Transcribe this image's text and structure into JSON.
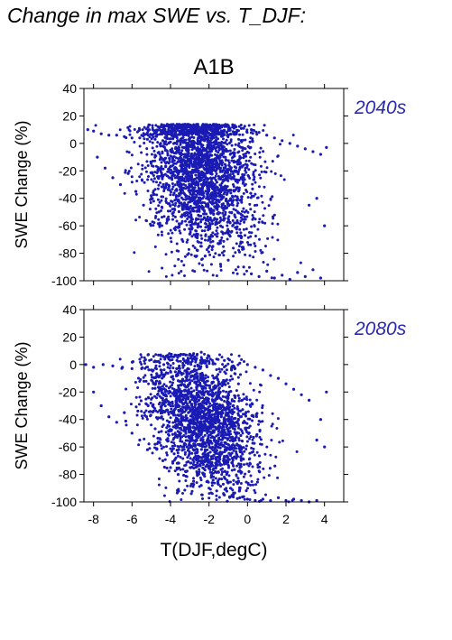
{
  "figure_title": "Change in max SWE vs. T_DJF:",
  "scenario": "A1B",
  "xlabel": "T(DJF,degC)",
  "colors": {
    "points": "#1a1ab4",
    "period_label": "#2a2ab0",
    "axis": "#000000"
  },
  "chart_data": [
    {
      "type": "scatter",
      "period": "2040s",
      "xlabel": "T(DJF,degC)",
      "ylabel": "SWE Change (%)",
      "xlim": [
        -8.5,
        5
      ],
      "ylim": [
        -100,
        40
      ],
      "x_ticks": [
        -8,
        -6,
        -4,
        -2,
        0,
        2,
        4
      ],
      "y_ticks": [
        40,
        20,
        0,
        -20,
        -40,
        -60,
        -80,
        -100
      ],
      "tick_labels_x": [
        "-8",
        "-6",
        "-4",
        "-2",
        "0",
        "2",
        "4"
      ],
      "tick_labels_y": [
        "40",
        "20",
        "0",
        "-20",
        "-40",
        "-60",
        "-80",
        "-100"
      ],
      "grid": false,
      "points": [
        [
          -8.3,
          10
        ],
        [
          -8.0,
          9
        ],
        [
          -7.6,
          7
        ],
        [
          -7.2,
          6
        ],
        [
          -6.8,
          6
        ],
        [
          -6.4,
          5
        ],
        [
          -6.0,
          4
        ],
        [
          -5.6,
          4
        ],
        [
          -5.2,
          3
        ],
        [
          -4.8,
          3
        ],
        [
          -4.4,
          2
        ],
        [
          -4.0,
          1
        ],
        [
          -7.8,
          -10
        ],
        [
          -7.4,
          -18
        ],
        [
          -7.0,
          -25
        ],
        [
          -6.6,
          -30
        ],
        [
          -6.2,
          -22
        ],
        [
          -5.8,
          -35
        ],
        [
          -5.4,
          -45
        ],
        [
          -5.0,
          -38
        ],
        [
          -4.6,
          -50
        ],
        [
          -4.2,
          -58
        ],
        [
          -3.8,
          -62
        ],
        [
          -3.4,
          -70
        ],
        [
          -3.0,
          -66
        ],
        [
          -2.6,
          -78
        ],
        [
          -2.2,
          -82
        ],
        [
          -1.8,
          -75
        ],
        [
          -1.4,
          -88
        ],
        [
          -1.0,
          -85
        ],
        [
          -0.6,
          -92
        ],
        [
          -0.2,
          -90
        ],
        [
          0.2,
          -95
        ],
        [
          0.6,
          -97
        ],
        [
          1.0,
          -93
        ],
        [
          1.4,
          -98
        ],
        [
          1.8,
          -96
        ],
        [
          2.2,
          -99
        ],
        [
          2.6,
          -94
        ],
        [
          3.0,
          -97
        ],
        [
          3.4,
          -92
        ],
        [
          3.8,
          -98
        ],
        [
          -3.0,
          12
        ],
        [
          -2.6,
          13
        ],
        [
          -2.2,
          12
        ],
        [
          -1.8,
          13
        ],
        [
          -1.4,
          12
        ],
        [
          -1.0,
          13
        ],
        [
          -0.6,
          12
        ],
        [
          -0.2,
          11
        ],
        [
          0.2,
          10
        ],
        [
          0.6,
          8
        ],
        [
          1.0,
          6
        ],
        [
          1.4,
          4
        ],
        [
          1.8,
          2
        ],
        [
          2.2,
          0
        ],
        [
          2.6,
          -2
        ],
        [
          3.0,
          -4
        ],
        [
          3.4,
          -6
        ],
        [
          3.8,
          -8
        ],
        [
          4.1,
          -3
        ],
        [
          3.6,
          -40
        ],
        [
          4.0,
          -60
        ],
        [
          3.2,
          -45
        ]
      ]
    },
    {
      "type": "scatter",
      "period": "2080s",
      "xlabel": "T(DJF,degC)",
      "ylabel": "SWE Change (%)",
      "xlim": [
        -8.5,
        5
      ],
      "ylim": [
        -100,
        40
      ],
      "x_ticks": [
        -8,
        -6,
        -4,
        -2,
        0,
        2,
        4
      ],
      "y_ticks": [
        40,
        20,
        0,
        -20,
        -40,
        -60,
        -80,
        -100
      ],
      "tick_labels_x": [
        "-8",
        "-6",
        "-4",
        "-2",
        "0",
        "2",
        "4"
      ],
      "tick_labels_y": [
        "40",
        "20",
        "0",
        "-20",
        "-40",
        "-60",
        "-80",
        "-100"
      ],
      "grid": false,
      "points": [
        [
          -8.4,
          0
        ],
        [
          -8.0,
          -2
        ],
        [
          -7.5,
          0
        ],
        [
          -7.0,
          -1
        ],
        [
          -6.5,
          -2
        ],
        [
          -6.0,
          -3
        ],
        [
          -5.5,
          -3
        ],
        [
          -5.0,
          -4
        ],
        [
          -4.5,
          -4
        ],
        [
          -4.0,
          -5
        ],
        [
          -8.0,
          -20
        ],
        [
          -7.6,
          -30
        ],
        [
          -7.2,
          -38
        ],
        [
          -6.8,
          -42
        ],
        [
          -6.4,
          -35
        ],
        [
          -6.0,
          -50
        ],
        [
          -5.6,
          -55
        ],
        [
          -5.2,
          -62
        ],
        [
          -4.8,
          -58
        ],
        [
          -4.4,
          -70
        ],
        [
          -4.0,
          -75
        ],
        [
          -3.6,
          -80
        ],
        [
          -3.2,
          -78
        ],
        [
          -2.8,
          -85
        ],
        [
          -2.4,
          -88
        ],
        [
          -2.0,
          -90
        ],
        [
          -1.6,
          -92
        ],
        [
          -1.2,
          -95
        ],
        [
          -0.8,
          -96
        ],
        [
          -0.4,
          -97
        ],
        [
          0.0,
          -98
        ],
        [
          0.4,
          -99
        ],
        [
          0.8,
          -98
        ],
        [
          1.2,
          -99
        ],
        [
          1.6,
          -97
        ],
        [
          2.0,
          -99
        ],
        [
          2.4,
          -98
        ],
        [
          2.8,
          -99
        ],
        [
          3.2,
          -100
        ],
        [
          3.6,
          -99
        ],
        [
          -2.8,
          8
        ],
        [
          -2.4,
          9
        ],
        [
          -2.0,
          6
        ],
        [
          -1.6,
          4
        ],
        [
          -1.2,
          3
        ],
        [
          -0.8,
          2
        ],
        [
          -0.4,
          1
        ],
        [
          0.0,
          0
        ],
        [
          0.4,
          -2
        ],
        [
          0.8,
          -4
        ],
        [
          1.2,
          -8
        ],
        [
          1.6,
          -10
        ],
        [
          2.0,
          -14
        ],
        [
          2.4,
          -18
        ],
        [
          2.8,
          -22
        ],
        [
          3.2,
          -26
        ],
        [
          3.8,
          -40
        ],
        [
          4.0,
          -60
        ],
        [
          3.6,
          -55
        ],
        [
          4.1,
          -20
        ]
      ]
    }
  ]
}
